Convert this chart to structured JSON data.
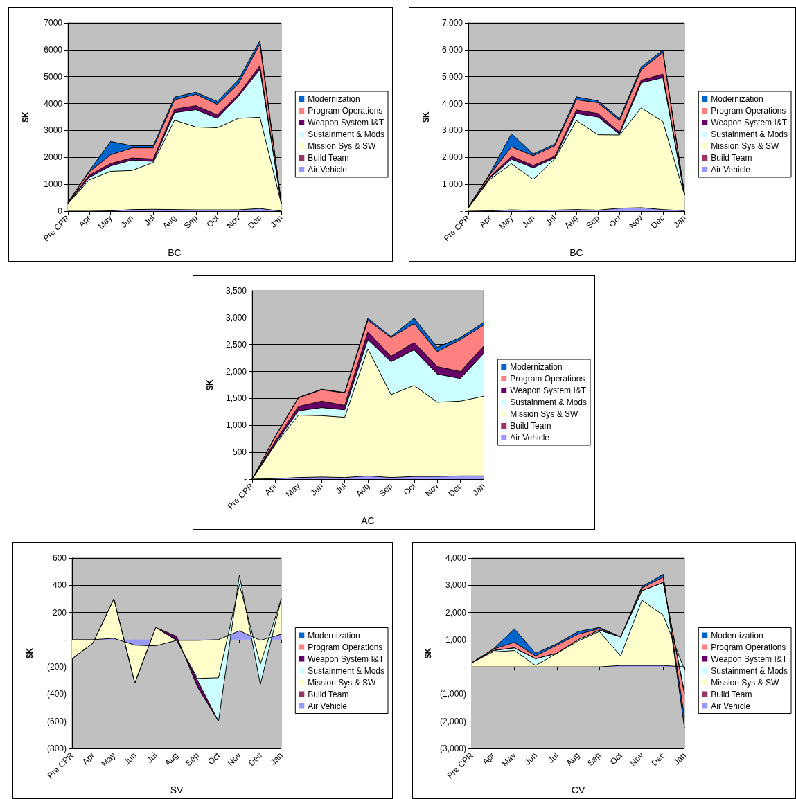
{
  "chart_data": [
    {
      "type": "area",
      "stacked": true,
      "xlabel": "BC",
      "ylabel": "$K",
      "legend": "right",
      "grid": "y",
      "marker": "none",
      "categories": [
        "Pre CPR",
        "Apr",
        "May",
        "Jun",
        "Jul",
        "Aug",
        "Sep",
        "Oct",
        "Nov",
        "Dec",
        "Jan"
      ],
      "ylim": [
        0,
        7000
      ],
      "yticks": [
        0,
        1000,
        2000,
        3000,
        4000,
        5000,
        6000,
        7000
      ],
      "series": [
        {
          "name": "Air Vehicle",
          "color": "#9999ff",
          "values": [
            0,
            0,
            10,
            60,
            70,
            60,
            50,
            50,
            50,
            100,
            0
          ]
        },
        {
          "name": "Build Team",
          "color": "#993366",
          "values": [
            null,
            null,
            null,
            null,
            null,
            null,
            null,
            null,
            null,
            null,
            null
          ]
        },
        {
          "name": "Mission Sys & SW",
          "color": "#ffffcc",
          "values": [
            280,
            1160,
            1470,
            1450,
            1740,
            3320,
            3080,
            3050,
            3400,
            3390,
            280
          ]
        },
        {
          "name": "Sustainment & Mods",
          "color": "#ccffff",
          "values": [
            10,
            90,
            200,
            390,
            40,
            280,
            640,
            350,
            820,
            1770,
            10
          ]
        },
        {
          "name": "Weapon System I&T",
          "color": "#660066",
          "values": [
            10,
            90,
            90,
            80,
            90,
            130,
            150,
            130,
            80,
            150,
            0
          ]
        },
        {
          "name": "Program Operations",
          "color": "#ff8080",
          "values": [
            20,
            120,
            320,
            370,
            410,
            350,
            420,
            390,
            390,
            800,
            10
          ]
        },
        {
          "name": "Modernization",
          "color": "#0066cc",
          "values": [
            0,
            40,
            500,
            80,
            80,
            100,
            80,
            110,
            150,
            130,
            0
          ]
        }
      ]
    },
    {
      "type": "area",
      "stacked": true,
      "xlabel": "BC",
      "ylabel": "$K",
      "legend": "right",
      "grid": "y",
      "marker": "none",
      "categories": [
        "Pre CPR",
        "Apr",
        "May",
        "Jun",
        "Jul",
        "Aug",
        "Sep",
        "Oct",
        "Nov",
        "Dec",
        "Jan"
      ],
      "ylim": [
        0,
        7000
      ],
      "yticks": [
        {
          "value": 0,
          "label": "-"
        },
        {
          "value": 1000,
          "label": "1,000"
        },
        {
          "value": 2000,
          "label": "2,000"
        },
        {
          "value": 3000,
          "label": "3,000"
        },
        {
          "value": 4000,
          "label": "4,000"
        },
        {
          "value": 5000,
          "label": "5,000"
        },
        {
          "value": 6000,
          "label": "6,000"
        },
        {
          "value": 7000,
          "label": "7,000"
        }
      ],
      "series": [
        {
          "name": "Air Vehicle",
          "color": "#9999ff",
          "values": [
            0,
            10,
            50,
            30,
            40,
            60,
            40,
            110,
            130,
            60,
            20
          ]
        },
        {
          "name": "Build Team",
          "color": "#993366",
          "values": [
            null,
            null,
            null,
            null,
            null,
            null,
            null,
            null,
            null,
            null,
            null
          ]
        },
        {
          "name": "Mission Sys & SW",
          "color": "#ffffcc",
          "values": [
            120,
            1170,
            1710,
            1150,
            1900,
            3310,
            2800,
            2720,
            3710,
            3270,
            590
          ]
        },
        {
          "name": "Sustainment & Mods",
          "color": "#ccffff",
          "values": [
            10,
            50,
            170,
            430,
            40,
            260,
            660,
            30,
            930,
            1630,
            10
          ]
        },
        {
          "name": "Weapon System I&T",
          "color": "#660066",
          "values": [
            10,
            40,
            110,
            90,
            60,
            130,
            130,
            80,
            100,
            130,
            0
          ]
        },
        {
          "name": "Program Operations",
          "color": "#ff8080",
          "values": [
            10,
            90,
            350,
            360,
            390,
            380,
            400,
            430,
            390,
            810,
            10
          ]
        },
        {
          "name": "Modernization",
          "color": "#0066cc",
          "values": [
            0,
            40,
            490,
            70,
            60,
            110,
            70,
            70,
            100,
            90,
            0
          ]
        }
      ]
    },
    {
      "type": "area",
      "stacked": true,
      "xlabel": "AC",
      "ylabel": "$K",
      "legend": "right",
      "grid": "y",
      "marker": "none",
      "categories": [
        "Pre CPR",
        "Apr",
        "May",
        "Jun",
        "Jul",
        "Aug",
        "Sep",
        "Oct",
        "Nov",
        "Dec",
        "Jan"
      ],
      "ylim": [
        0,
        3500
      ],
      "yticks": [
        {
          "value": 0,
          "label": "-"
        },
        500,
        {
          "value": 1000,
          "label": "1,000"
        },
        {
          "value": 1500,
          "label": "1,500"
        },
        {
          "value": 2000,
          "label": "2,000"
        },
        {
          "value": 2500,
          "label": "2,500"
        },
        {
          "value": 3000,
          "label": "3,000"
        },
        {
          "value": 3500,
          "label": "3,500"
        }
      ],
      "series": [
        {
          "name": "Air Vehicle",
          "color": "#9999ff",
          "values": [
            0,
            10,
            30,
            40,
            30,
            60,
            30,
            50,
            50,
            60,
            60
          ]
        },
        {
          "name": "Build Team",
          "color": "#993366",
          "values": [
            null,
            null,
            null,
            null,
            null,
            null,
            null,
            null,
            null,
            null,
            null
          ]
        },
        {
          "name": "Mission Sys & SW",
          "color": "#ffffcc",
          "values": [
            0,
            630,
            1160,
            1140,
            1120,
            2360,
            1540,
            1690,
            1380,
            1390,
            1480
          ]
        },
        {
          "name": "Sustainment & Mods",
          "color": "#ccffff",
          "values": [
            0,
            20,
            80,
            150,
            140,
            170,
            610,
            660,
            520,
            420,
            790
          ]
        },
        {
          "name": "Weapon System I&T",
          "color": "#660066",
          "values": [
            0,
            50,
            80,
            120,
            80,
            150,
            100,
            140,
            140,
            130,
            140
          ]
        },
        {
          "name": "Program Operations",
          "color": "#ff8080",
          "values": [
            0,
            80,
            160,
            210,
            230,
            210,
            350,
            350,
            280,
            590,
            390
          ]
        },
        {
          "name": "Modernization",
          "color": "#0066cc",
          "values": [
            0,
            10,
            10,
            10,
            10,
            40,
            20,
            100,
            80,
            40,
            50
          ]
        }
      ]
    },
    {
      "type": "area",
      "stacked": true,
      "xlabel": "SV",
      "ylabel": "$K",
      "legend": "right",
      "grid": "y",
      "marker": "none",
      "categories": [
        "Pre CPR",
        "Apr",
        "May",
        "Jun",
        "Jul",
        "Aug",
        "Sep",
        "Oct",
        "Nov",
        "Dec",
        "Jan"
      ],
      "ylim": [
        -800,
        600
      ],
      "yticks": [
        {
          "value": -800,
          "label": "(800)"
        },
        {
          "value": -600,
          "label": "(600)"
        },
        {
          "value": -400,
          "label": "(400)"
        },
        {
          "value": -200,
          "label": "(200)"
        },
        {
          "value": 0,
          "label": "-"
        },
        200,
        400,
        600
      ],
      "series": [
        {
          "name": "Air Vehicle",
          "color": "#9999ff",
          "values": [
            0,
            0,
            10,
            -40,
            -45,
            -5,
            -5,
            0,
            65,
            -5,
            40
          ]
        },
        {
          "name": "Build Team",
          "color": "#993366",
          "values": [
            null,
            null,
            null,
            null,
            null,
            null,
            null,
            null,
            null,
            null,
            null
          ]
        },
        {
          "name": "Mission Sys & SW",
          "color": "#ffffcc",
          "values": [
            -140,
            -25,
            290,
            -280,
            135,
            0,
            -280,
            -280,
            340,
            -175,
            260
          ]
        },
        {
          "name": "Sustainment & Mods",
          "color": "#ccffff",
          "values": [
            0,
            0,
            0,
            0,
            0,
            0,
            -15,
            -320,
            70,
            -150,
            0
          ]
        },
        {
          "name": "Weapon System I&T",
          "color": "#660066",
          "values": [
            null,
            null,
            null,
            null,
            0,
            30,
            -50,
            0,
            null,
            null,
            null
          ]
        },
        {
          "name": "Program Operations",
          "color": "#ff8080",
          "values": [
            null,
            null,
            null,
            null,
            null,
            null,
            null,
            null,
            null,
            null,
            null
          ]
        },
        {
          "name": "Modernization",
          "color": "#0066cc",
          "values": [
            null,
            null,
            null,
            null,
            null,
            null,
            null,
            null,
            null,
            null,
            null
          ]
        }
      ]
    },
    {
      "type": "area",
      "stacked": true,
      "xlabel": "CV",
      "ylabel": "$K",
      "legend": "right",
      "grid": "y",
      "marker": "none",
      "categories": [
        "Pre CPR",
        "Apr",
        "May",
        "Jun",
        "Jul",
        "Aug",
        "Sep",
        "Oct",
        "Nov",
        "Dec",
        "Jan"
      ],
      "ylim": [
        -3000,
        4000
      ],
      "yticks": [
        {
          "value": -3000,
          "label": "(3,000)"
        },
        {
          "value": -2000,
          "label": "(2,000)"
        },
        {
          "value": -1000,
          "label": "(1,000)"
        },
        {
          "value": 0,
          "label": "-"
        },
        {
          "value": 1000,
          "label": "1,000"
        },
        {
          "value": 2000,
          "label": "2,000"
        },
        {
          "value": 3000,
          "label": "3,000"
        },
        {
          "value": 4000,
          "label": "4,000"
        }
      ],
      "series": [
        {
          "name": "Air Vehicle",
          "color": "#9999ff",
          "values": [
            0,
            0,
            0,
            0,
            0,
            0,
            0,
            50,
            50,
            50,
            0
          ]
        },
        {
          "name": "Build Team",
          "color": "#993366",
          "values": [
            null,
            null,
            null,
            null,
            null,
            null,
            null,
            null,
            null,
            null,
            null
          ]
        },
        {
          "name": "Mission Sys & SW",
          "color": "#ffffcc",
          "values": [
            150,
            550,
            600,
            50,
            500,
            950,
            1300,
            350,
            2400,
            1850,
            -100
          ]
        },
        {
          "name": "Sustainment & Mods",
          "color": "#ccffff",
          "values": [
            0,
            50,
            100,
            250,
            0,
            50,
            50,
            700,
            350,
            1200,
            -850
          ]
        },
        {
          "name": "Weapon System I&T",
          "color": "#660066",
          "values": [
            0,
            0,
            0,
            0,
            0,
            0,
            0,
            0,
            0,
            0,
            -50
          ]
        },
        {
          "name": "Program Operations",
          "color": "#ff8080",
          "values": [
            0,
            50,
            200,
            100,
            300,
            200,
            50,
            0,
            100,
            200,
            -850
          ]
        },
        {
          "name": "Modernization",
          "color": "#0066cc",
          "values": [
            0,
            0,
            500,
            100,
            50,
            100,
            50,
            0,
            50,
            100,
            -400
          ]
        }
      ]
    }
  ]
}
